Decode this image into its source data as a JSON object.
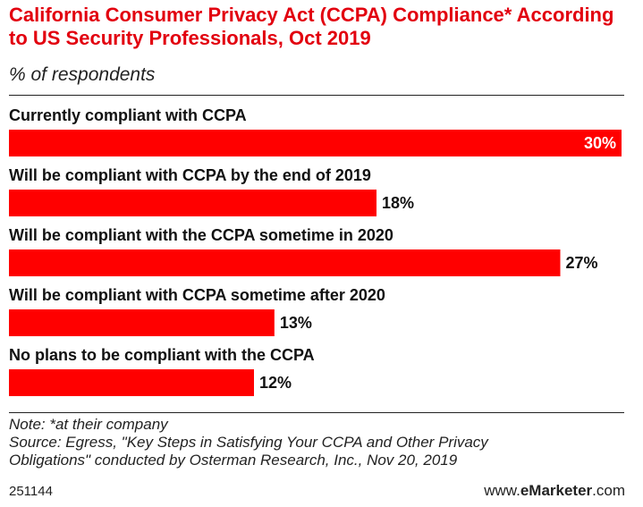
{
  "chart_data": {
    "type": "bar",
    "orientation": "horizontal",
    "title": "California Consumer Privacy Act (CCPA) Compliance* According to US Security Professionals, Oct 2019",
    "subtitle": "% of respondents",
    "categories": [
      "Currently compliant with CCPA",
      "Will be compliant with CCPA by the end of 2019",
      "Will be compliant with the CCPA sometime in 2020",
      "Will be compliant with CCPA sometime after 2020",
      "No plans to be compliant with the CCPA"
    ],
    "values": [
      30,
      18,
      27,
      13,
      12
    ],
    "value_labels": [
      "30%",
      "18%",
      "27%",
      "13%",
      "12%"
    ],
    "xlim": [
      0,
      30
    ],
    "bar_color": "#ff0000",
    "grid": false
  },
  "footer": {
    "note": "Note: *at their company",
    "source_line1": "Source: Egress, \"Key Steps in Satisfying Your CCPA and Other Privacy",
    "source_line2": "Obligations\" conducted by Osterman Research, Inc., Nov 20, 2019",
    "chart_id": "251144",
    "brand_prefix": "www.",
    "brand_name": "eMarketer",
    "brand_suffix": ".com"
  }
}
